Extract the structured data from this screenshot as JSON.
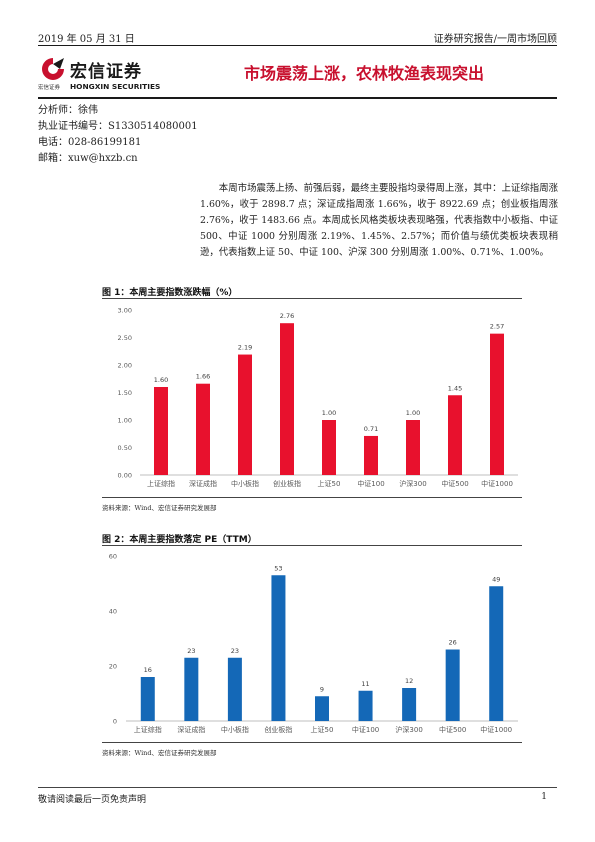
{
  "header": {
    "date": "2019 年 05 月 31 日",
    "category": "证券研究报告/一周市场回顾"
  },
  "logo": {
    "name": "宏信证券",
    "sub_cn": "宏信证券",
    "sub_en": "HONGXIN SECURITIES",
    "color": "#c8102e"
  },
  "title": "市场震荡上涨，农林牧渔表现突出",
  "analyst": {
    "name": "分析师：徐伟",
    "license": "执业证书编号：S1330514080001",
    "phone": "电话：028-86199181",
    "email": "邮箱：xuw@hxzb.cn"
  },
  "summary": "本周市场震荡上扬、前强后弱，最终主要股指均录得周上涨，其中：上证综指周涨 1.60%，收于 2898.7 点；深证成指周涨 1.66%，收于 8922.69 点；创业板指周涨 2.76%，收于 1483.66 点。本周成长风格类板块表现略强，代表指数中小板指、中证 500、中证 1000 分别周涨 2.19%、1.45%、2.57%；而价值与绩优类板块表现稍逊，代表指数上证 50、中证 100、沪深 300 分别周涨 1.00%、0.71%、1.00%。",
  "figures": [
    {
      "title": "图 1：本周主要指数涨跌幅（%）",
      "source": "资料来源：Wind、宏信证券研究发展部"
    },
    {
      "title": "图 2：本周主要指数落定 PE（TTM）",
      "source": "资料来源：Wind、宏信证券研究发展部"
    }
  ],
  "chart_data": [
    {
      "type": "bar",
      "categories": [
        "上证综指",
        "深证成指",
        "中小板指",
        "创业板指",
        "上证50",
        "中证100",
        "沪深300",
        "中证500",
        "中证1000"
      ],
      "values": [
        1.6,
        1.66,
        2.19,
        2.76,
        1.0,
        0.71,
        1.0,
        1.45,
        2.57
      ],
      "value_labels": [
        "1.60",
        "1.66",
        "2.19",
        "2.76",
        "1.00",
        "0.71",
        "1.00",
        "1.45",
        "2.57"
      ],
      "ylim": [
        0,
        3
      ],
      "yticks": [
        "0.00",
        "0.50",
        "1.00",
        "1.50",
        "2.00",
        "2.50",
        "3.00"
      ],
      "ytick_values": [
        0,
        0.5,
        1,
        1.5,
        2,
        2.5,
        3
      ],
      "grid": false,
      "color": "#e8112d"
    },
    {
      "type": "bar",
      "categories": [
        "上证综指",
        "深证成指",
        "中小板指",
        "创业板指",
        "上证50",
        "中证100",
        "沪深300",
        "中证500",
        "中证1000"
      ],
      "values": [
        16,
        23,
        23,
        53,
        9,
        11,
        12,
        26,
        49
      ],
      "value_labels": [
        "16",
        "23",
        "23",
        "53",
        "9",
        "11",
        "12",
        "26",
        "49"
      ],
      "ylim": [
        0,
        60
      ],
      "yticks": [
        "0",
        "20",
        "40",
        "60"
      ],
      "ytick_values": [
        0,
        20,
        40,
        60
      ],
      "grid": false,
      "color": "#1468b7"
    }
  ],
  "footer": {
    "disclaimer": "敬请阅读最后一页免责声明",
    "page": "1"
  }
}
